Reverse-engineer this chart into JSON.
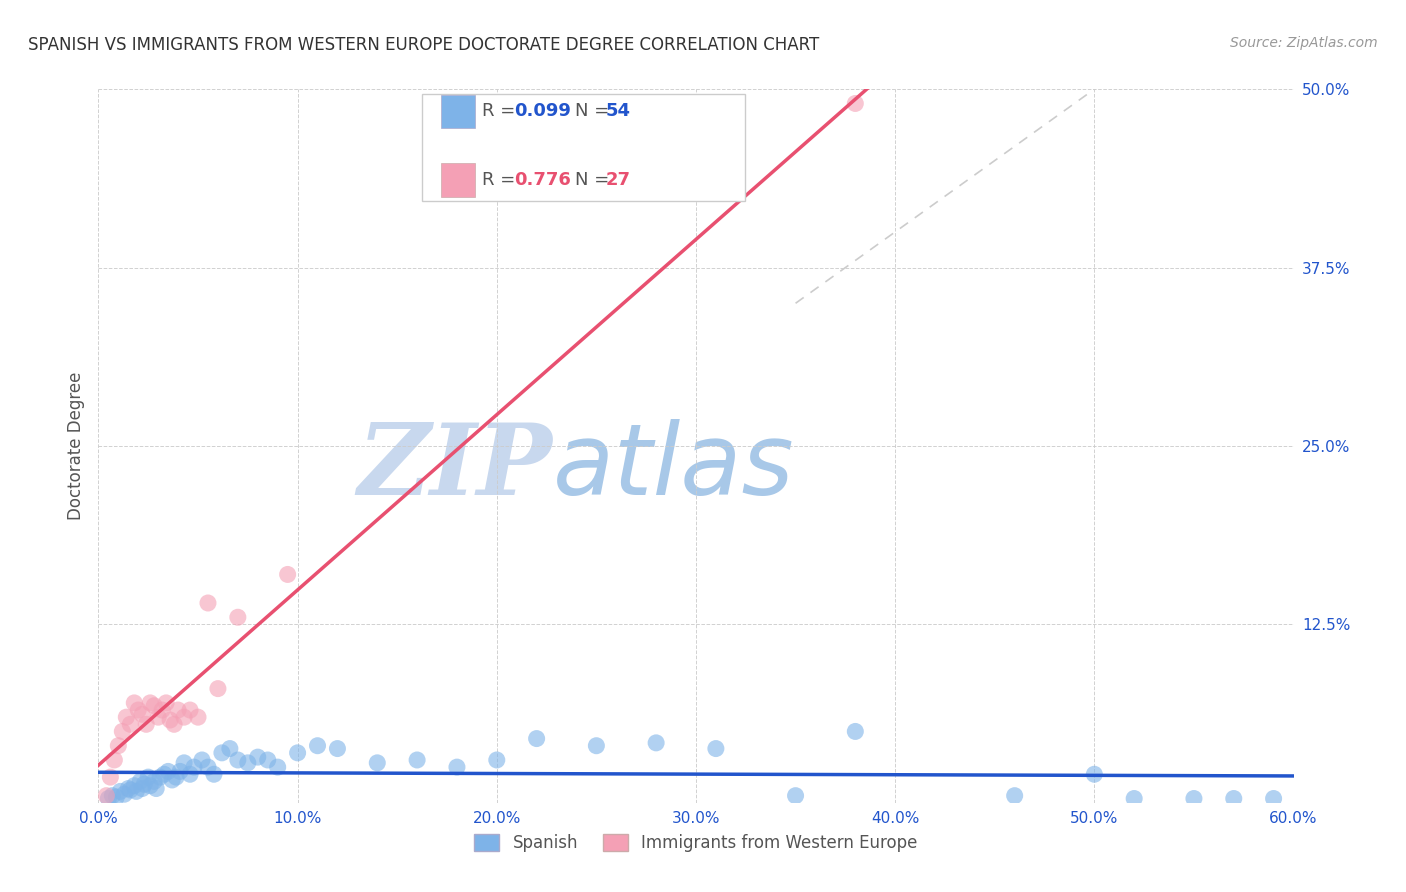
{
  "title": "SPANISH VS IMMIGRANTS FROM WESTERN EUROPE DOCTORATE DEGREE CORRELATION CHART",
  "source": "Source: ZipAtlas.com",
  "ylabel": "Doctorate Degree",
  "xlim": [
    0.0,
    0.6
  ],
  "ylim": [
    0.0,
    0.5
  ],
  "xticks": [
    0.0,
    0.1,
    0.2,
    0.3,
    0.4,
    0.5,
    0.6
  ],
  "yticks": [
    0.0,
    0.125,
    0.25,
    0.375,
    0.5
  ],
  "xtick_labels": [
    "0.0%",
    "10.0%",
    "20.0%",
    "30.0%",
    "40.0%",
    "50.0%",
    "60.0%"
  ],
  "ytick_labels": [
    "",
    "12.5%",
    "25.0%",
    "37.5%",
    "50.0%"
  ],
  "background_color": "#ffffff",
  "grid_color": "#cccccc",
  "watermark_zip": "ZIP",
  "watermark_atlas": "atlas",
  "watermark_color_zip": "#c8d8ee",
  "watermark_color_atlas": "#a8c8e8",
  "spanish_color": "#7eb3e8",
  "immigrant_color": "#f4a0b5",
  "spanish_line_color": "#2255cc",
  "immigrant_line_color": "#e85070",
  "diag_line_color": "#cccccc",
  "legend_label_spanish": "Spanish",
  "legend_label_immigrant": "Immigrants from Western Europe",
  "spanish_x": [
    0.005,
    0.007,
    0.009,
    0.011,
    0.013,
    0.015,
    0.016,
    0.018,
    0.019,
    0.021,
    0.022,
    0.023,
    0.025,
    0.026,
    0.028,
    0.029,
    0.031,
    0.033,
    0.035,
    0.037,
    0.039,
    0.041,
    0.043,
    0.046,
    0.048,
    0.052,
    0.055,
    0.058,
    0.062,
    0.066,
    0.07,
    0.075,
    0.08,
    0.085,
    0.09,
    0.1,
    0.11,
    0.12,
    0.14,
    0.16,
    0.18,
    0.2,
    0.22,
    0.25,
    0.28,
    0.31,
    0.35,
    0.38,
    0.46,
    0.5,
    0.52,
    0.55,
    0.57,
    0.59
  ],
  "spanish_y": [
    0.003,
    0.005,
    0.004,
    0.008,
    0.006,
    0.01,
    0.009,
    0.012,
    0.008,
    0.015,
    0.01,
    0.013,
    0.018,
    0.012,
    0.015,
    0.01,
    0.018,
    0.02,
    0.022,
    0.016,
    0.018,
    0.022,
    0.028,
    0.02,
    0.025,
    0.03,
    0.025,
    0.02,
    0.035,
    0.038,
    0.03,
    0.028,
    0.032,
    0.03,
    0.025,
    0.035,
    0.04,
    0.038,
    0.028,
    0.03,
    0.025,
    0.03,
    0.045,
    0.04,
    0.042,
    0.038,
    0.005,
    0.05,
    0.005,
    0.02,
    0.003,
    0.003,
    0.003,
    0.003
  ],
  "immigrant_x": [
    0.004,
    0.006,
    0.008,
    0.01,
    0.012,
    0.014,
    0.016,
    0.018,
    0.02,
    0.022,
    0.024,
    0.026,
    0.028,
    0.03,
    0.032,
    0.034,
    0.036,
    0.038,
    0.04,
    0.043,
    0.046,
    0.05,
    0.055,
    0.06,
    0.07,
    0.095,
    0.38
  ],
  "immigrant_y": [
    0.005,
    0.018,
    0.03,
    0.04,
    0.05,
    0.06,
    0.055,
    0.07,
    0.065,
    0.062,
    0.055,
    0.07,
    0.068,
    0.06,
    0.065,
    0.07,
    0.058,
    0.055,
    0.065,
    0.06,
    0.065,
    0.06,
    0.14,
    0.08,
    0.13,
    0.16,
    0.49
  ]
}
